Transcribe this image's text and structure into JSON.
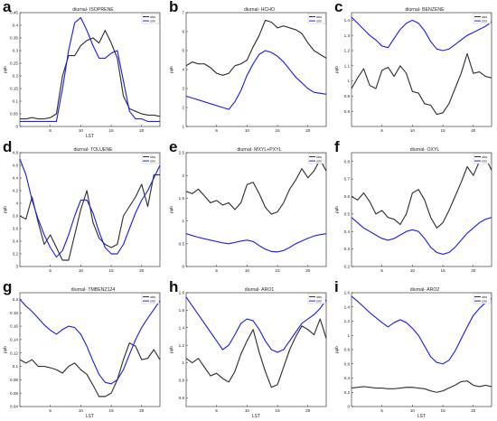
{
  "chart_data": [
    {
      "panel": "a",
      "title": "diurnal- ISOPRENE",
      "type": "line",
      "xlabel": "LST",
      "ylabel": "ppb",
      "xlim": [
        0,
        23
      ],
      "ylim": [
        0,
        0.45
      ],
      "xticks": [
        5,
        10,
        15,
        20
      ],
      "yticks": [
        0,
        0.05,
        0.1,
        0.15,
        0.2,
        0.25,
        0.3,
        0.35,
        0.4,
        0.45
      ],
      "ytick_labels": [
        "0",
        "0.05",
        "0.1",
        "0.15",
        "0.2",
        "0.25",
        "0.3",
        "0.35",
        "0.4",
        "0.45"
      ],
      "x": [
        0,
        1,
        2,
        3,
        4,
        5,
        6,
        7,
        8,
        9,
        10,
        11,
        12,
        13,
        14,
        15,
        16,
        17,
        18,
        19,
        20,
        21,
        22,
        23
      ],
      "series": [
        {
          "name": "obs",
          "color": "#333333",
          "values": [
            0.03,
            0.03,
            0.035,
            0.03,
            0.03,
            0.035,
            0.05,
            0.2,
            0.28,
            0.28,
            0.32,
            0.34,
            0.35,
            0.33,
            0.38,
            0.33,
            0.27,
            0.12,
            0.07,
            0.06,
            0.05,
            0.045,
            0.045,
            0.04
          ]
        },
        {
          "name": "sim",
          "color": "#2222ee",
          "values": [
            0.02,
            0.02,
            0.02,
            0.02,
            0.02,
            0.02,
            0.02,
            0.15,
            0.3,
            0.41,
            0.43,
            0.38,
            0.32,
            0.27,
            0.27,
            0.29,
            0.3,
            0.18,
            0.06,
            0.03,
            0.03,
            0.02,
            0.02,
            0.02
          ]
        }
      ]
    },
    {
      "panel": "b",
      "title": "diurnal- HCHO",
      "type": "line",
      "xlabel": "",
      "ylabel": "ppb",
      "xlim": [
        0,
        23
      ],
      "ylim": [
        1,
        7
      ],
      "xticks": [
        5,
        10,
        15,
        20
      ],
      "yticks": [
        1,
        2,
        3,
        4,
        5,
        6,
        7
      ],
      "ytick_labels": [
        "1",
        "2",
        "3",
        "4",
        "5",
        "6",
        "7"
      ],
      "x": [
        0,
        1,
        2,
        3,
        4,
        5,
        6,
        7,
        8,
        9,
        10,
        11,
        12,
        13,
        14,
        15,
        16,
        17,
        18,
        19,
        20,
        21,
        22,
        23
      ],
      "series": [
        {
          "name": "obs",
          "color": "#333333",
          "values": [
            4.2,
            4.4,
            4.3,
            4.3,
            4.1,
            3.8,
            3.7,
            3.8,
            4.2,
            4.3,
            4.5,
            5.2,
            5.8,
            6.6,
            6.5,
            6.2,
            6.3,
            6.2,
            6.1,
            5.9,
            5.4,
            5.0,
            4.8,
            4.6
          ]
        },
        {
          "name": "sim",
          "color": "#2222ee",
          "values": [
            2.6,
            2.5,
            2.4,
            2.3,
            2.2,
            2.1,
            2.0,
            1.9,
            2.3,
            2.9,
            3.7,
            4.3,
            4.8,
            5.0,
            4.9,
            4.7,
            4.4,
            4.0,
            3.6,
            3.3,
            3.0,
            2.8,
            2.75,
            2.7
          ]
        }
      ]
    },
    {
      "panel": "c",
      "title": "diurnal- BENZENE",
      "type": "line",
      "xlabel": "",
      "ylabel": "ppb",
      "xlim": [
        0,
        23
      ],
      "ylim": [
        0.7,
        1.45
      ],
      "xticks": [
        5,
        10,
        15,
        20
      ],
      "yticks": [
        0.8,
        0.9,
        1.0,
        1.1,
        1.2,
        1.3,
        1.4
      ],
      "ytick_labels": [
        "0.8",
        "0.9",
        "1",
        "1.1",
        "1.2",
        "1.3",
        "1.4"
      ],
      "x": [
        0,
        1,
        2,
        3,
        4,
        5,
        6,
        7,
        8,
        9,
        10,
        11,
        12,
        13,
        14,
        15,
        16,
        17,
        18,
        19,
        20,
        21,
        22,
        23
      ],
      "series": [
        {
          "name": "obs",
          "color": "#333333",
          "values": [
            0.95,
            1.02,
            1.08,
            0.97,
            0.95,
            1.07,
            1.09,
            1.03,
            1.1,
            1.05,
            0.93,
            0.92,
            0.85,
            0.84,
            0.78,
            0.79,
            0.85,
            0.95,
            1.05,
            1.18,
            1.05,
            1.06,
            1.03,
            1.02
          ]
        },
        {
          "name": "sim",
          "color": "#2222ee",
          "values": [
            1.42,
            1.38,
            1.34,
            1.3,
            1.27,
            1.23,
            1.22,
            1.28,
            1.34,
            1.38,
            1.4,
            1.38,
            1.33,
            1.26,
            1.21,
            1.2,
            1.21,
            1.24,
            1.27,
            1.3,
            1.32,
            1.34,
            1.36,
            1.39
          ]
        }
      ]
    },
    {
      "panel": "d",
      "title": "diurnal- TOLUENE",
      "type": "line",
      "xlabel": "",
      "ylabel": "ppb",
      "xlim": [
        0,
        23
      ],
      "ylim": [
        3,
        4.8
      ],
      "xticks": [
        5,
        10,
        15,
        20
      ],
      "yticks": [
        3.0,
        3.2,
        3.4,
        3.6,
        3.8,
        4.0,
        4.2,
        4.4,
        4.6,
        4.8
      ],
      "ytick_labels": [
        "3",
        "3.2",
        "3.4",
        "3.6",
        "3.8",
        "4",
        "4.2",
        "4.4",
        "4.6",
        "4.8"
      ],
      "x": [
        0,
        1,
        2,
        3,
        4,
        5,
        6,
        7,
        8,
        9,
        10,
        11,
        12,
        13,
        14,
        15,
        16,
        17,
        18,
        19,
        20,
        21,
        22,
        23
      ],
      "series": [
        {
          "name": "obs",
          "color": "#333333",
          "values": [
            3.8,
            3.75,
            4.1,
            3.7,
            3.35,
            3.5,
            3.3,
            3.1,
            3.1,
            3.5,
            3.9,
            4.2,
            3.7,
            3.45,
            3.35,
            3.3,
            3.35,
            3.8,
            3.95,
            4.1,
            4.3,
            3.95,
            4.45,
            4.45
          ]
        },
        {
          "name": "sim",
          "color": "#2222ee",
          "values": [
            4.7,
            4.45,
            4.05,
            3.75,
            3.5,
            3.3,
            3.15,
            3.25,
            3.5,
            3.8,
            4.05,
            4.05,
            3.85,
            3.55,
            3.3,
            3.2,
            3.2,
            3.35,
            3.6,
            3.85,
            4.05,
            4.2,
            4.4,
            4.6
          ]
        }
      ]
    },
    {
      "panel": "e",
      "title": "diurnal- MXYL+PXYL",
      "type": "line",
      "xlabel": "",
      "ylabel": "ppb",
      "xlim": [
        0,
        23
      ],
      "ylim": [
        0,
        2.5
      ],
      "xticks": [
        5,
        10,
        15,
        20
      ],
      "yticks": [
        0,
        0.5,
        1,
        1.5,
        2,
        2.5
      ],
      "ytick_labels": [
        "0",
        "0.5",
        "1",
        "1.5",
        "2",
        "2.5"
      ],
      "x": [
        0,
        1,
        2,
        3,
        4,
        5,
        6,
        7,
        8,
        9,
        10,
        11,
        12,
        13,
        14,
        15,
        16,
        17,
        18,
        19,
        20,
        21,
        22,
        23
      ],
      "series": [
        {
          "name": "obs",
          "color": "#333333",
          "values": [
            1.65,
            1.6,
            1.7,
            1.55,
            1.4,
            1.45,
            1.35,
            1.4,
            1.25,
            1.4,
            1.8,
            1.85,
            1.6,
            1.3,
            1.15,
            1.2,
            1.4,
            1.7,
            1.9,
            2.15,
            1.95,
            2.1,
            2.35,
            2.1
          ]
        },
        {
          "name": "sim",
          "color": "#2222ee",
          "values": [
            0.72,
            0.68,
            0.64,
            0.61,
            0.58,
            0.55,
            0.52,
            0.5,
            0.53,
            0.56,
            0.58,
            0.55,
            0.46,
            0.38,
            0.33,
            0.32,
            0.35,
            0.42,
            0.5,
            0.56,
            0.62,
            0.67,
            0.7,
            0.72
          ]
        }
      ]
    },
    {
      "panel": "f",
      "title": "diurnal- OXYL",
      "type": "line",
      "xlabel": "",
      "ylabel": "ppb",
      "xlim": [
        0,
        23
      ],
      "ylim": [
        0.2,
        0.85
      ],
      "xticks": [
        5,
        10,
        15,
        20
      ],
      "yticks": [
        0.2,
        0.3,
        0.4,
        0.5,
        0.6,
        0.7,
        0.8
      ],
      "ytick_labels": [
        "0.2",
        "0.3",
        "0.4",
        "0.5",
        "0.6",
        "0.7",
        "0.8"
      ],
      "x": [
        0,
        1,
        2,
        3,
        4,
        5,
        6,
        7,
        8,
        9,
        10,
        11,
        12,
        13,
        14,
        15,
        16,
        17,
        18,
        19,
        20,
        21,
        22,
        23
      ],
      "series": [
        {
          "name": "obs",
          "color": "#333333",
          "values": [
            0.6,
            0.58,
            0.62,
            0.57,
            0.5,
            0.52,
            0.48,
            0.47,
            0.44,
            0.5,
            0.62,
            0.64,
            0.58,
            0.48,
            0.42,
            0.45,
            0.52,
            0.6,
            0.68,
            0.77,
            0.72,
            0.8,
            0.82,
            0.75
          ]
        },
        {
          "name": "sim",
          "color": "#2222ee",
          "values": [
            0.48,
            0.45,
            0.42,
            0.4,
            0.38,
            0.36,
            0.35,
            0.36,
            0.38,
            0.4,
            0.41,
            0.4,
            0.36,
            0.31,
            0.28,
            0.27,
            0.28,
            0.31,
            0.35,
            0.39,
            0.42,
            0.45,
            0.47,
            0.48
          ]
        }
      ]
    },
    {
      "panel": "g",
      "title": "diurnal- TMBENZ124",
      "type": "line",
      "xlabel": "LST",
      "ylabel": "ppb",
      "xlim": [
        0,
        23
      ],
      "ylim": [
        0.04,
        0.21
      ],
      "xticks": [
        5,
        10,
        15,
        20
      ],
      "yticks": [
        0.04,
        0.06,
        0.08,
        0.1,
        0.12,
        0.14,
        0.16,
        0.18,
        0.2
      ],
      "ytick_labels": [
        "0.04",
        "0.06",
        "0.08",
        "0.1",
        "0.12",
        "0.14",
        "0.16",
        "0.18",
        "0.2"
      ],
      "x": [
        0,
        1,
        2,
        3,
        4,
        5,
        6,
        7,
        8,
        9,
        10,
        11,
        12,
        13,
        14,
        15,
        16,
        17,
        18,
        19,
        20,
        21,
        22,
        23
      ],
      "series": [
        {
          "name": "obs",
          "color": "#333333",
          "values": [
            0.11,
            0.105,
            0.11,
            0.1,
            0.1,
            0.098,
            0.095,
            0.09,
            0.1,
            0.105,
            0.095,
            0.088,
            0.072,
            0.055,
            0.055,
            0.06,
            0.08,
            0.11,
            0.135,
            0.13,
            0.11,
            0.112,
            0.125,
            0.11
          ]
        },
        {
          "name": "sim",
          "color": "#2222ee",
          "values": [
            0.2,
            0.19,
            0.182,
            0.172,
            0.162,
            0.154,
            0.148,
            0.155,
            0.16,
            0.158,
            0.148,
            0.13,
            0.108,
            0.088,
            0.076,
            0.074,
            0.08,
            0.095,
            0.118,
            0.14,
            0.158,
            0.172,
            0.185,
            0.198
          ]
        }
      ]
    },
    {
      "panel": "h",
      "title": "diurnal- ARO1",
      "type": "line",
      "xlabel": "LST",
      "ylabel": "ppb",
      "xlim": [
        0,
        23
      ],
      "ylim": [
        0.5,
        1.8
      ],
      "xticks": [
        5,
        10,
        15,
        20
      ],
      "yticks": [
        0.6,
        0.8,
        1.0,
        1.2,
        1.4,
        1.6,
        1.8
      ],
      "ytick_labels": [
        "0.6",
        "0.8",
        "1",
        "1.2",
        "1.4",
        "1.6",
        "1.8"
      ],
      "x": [
        0,
        1,
        2,
        3,
        4,
        5,
        6,
        7,
        8,
        9,
        10,
        11,
        12,
        13,
        14,
        15,
        16,
        17,
        18,
        19,
        20,
        21,
        22,
        23
      ],
      "series": [
        {
          "name": "obs",
          "color": "#333333",
          "values": [
            1.05,
            1.0,
            1.05,
            0.95,
            0.85,
            0.88,
            0.82,
            0.78,
            0.9,
            1.1,
            1.25,
            1.38,
            1.12,
            0.9,
            0.72,
            0.75,
            0.95,
            1.15,
            1.3,
            1.42,
            1.38,
            1.32,
            1.5,
            1.28
          ]
        },
        {
          "name": "sim",
          "color": "#2222ee",
          "values": [
            1.75,
            1.65,
            1.55,
            1.45,
            1.35,
            1.25,
            1.15,
            1.2,
            1.32,
            1.45,
            1.5,
            1.48,
            1.38,
            1.25,
            1.15,
            1.12,
            1.15,
            1.25,
            1.35,
            1.45,
            1.5,
            1.55,
            1.62,
            1.72
          ]
        }
      ]
    },
    {
      "panel": "i",
      "title": "diurnal- ARO2",
      "type": "line",
      "xlabel": "LST",
      "ylabel": "ppb",
      "xlim": [
        0,
        23
      ],
      "ylim": [
        0,
        1.6
      ],
      "xticks": [
        5,
        10,
        15,
        20
      ],
      "yticks": [
        0,
        0.2,
        0.4,
        0.6,
        0.8,
        1.0,
        1.2,
        1.4,
        1.6
      ],
      "ytick_labels": [
        "0",
        "0.2",
        "0.4",
        "0.6",
        "0.8",
        "1",
        "1.2",
        "1.4",
        "1.6"
      ],
      "x": [
        0,
        1,
        2,
        3,
        4,
        5,
        6,
        7,
        8,
        9,
        10,
        11,
        12,
        13,
        14,
        15,
        16,
        17,
        18,
        19,
        20,
        21,
        22,
        23
      ],
      "series": [
        {
          "name": "obs",
          "color": "#333333",
          "values": [
            0.26,
            0.27,
            0.28,
            0.27,
            0.26,
            0.26,
            0.25,
            0.25,
            0.26,
            0.27,
            0.27,
            0.26,
            0.25,
            0.22,
            0.2,
            0.22,
            0.26,
            0.3,
            0.35,
            0.36,
            0.3,
            0.28,
            0.3,
            0.28
          ]
        },
        {
          "name": "sim",
          "color": "#2222ee",
          "values": [
            1.55,
            1.48,
            1.4,
            1.32,
            1.25,
            1.18,
            1.12,
            1.18,
            1.22,
            1.18,
            1.1,
            1.0,
            0.85,
            0.7,
            0.62,
            0.6,
            0.65,
            0.78,
            0.95,
            1.12,
            1.28,
            1.38,
            1.46,
            1.52
          ]
        }
      ]
    }
  ]
}
